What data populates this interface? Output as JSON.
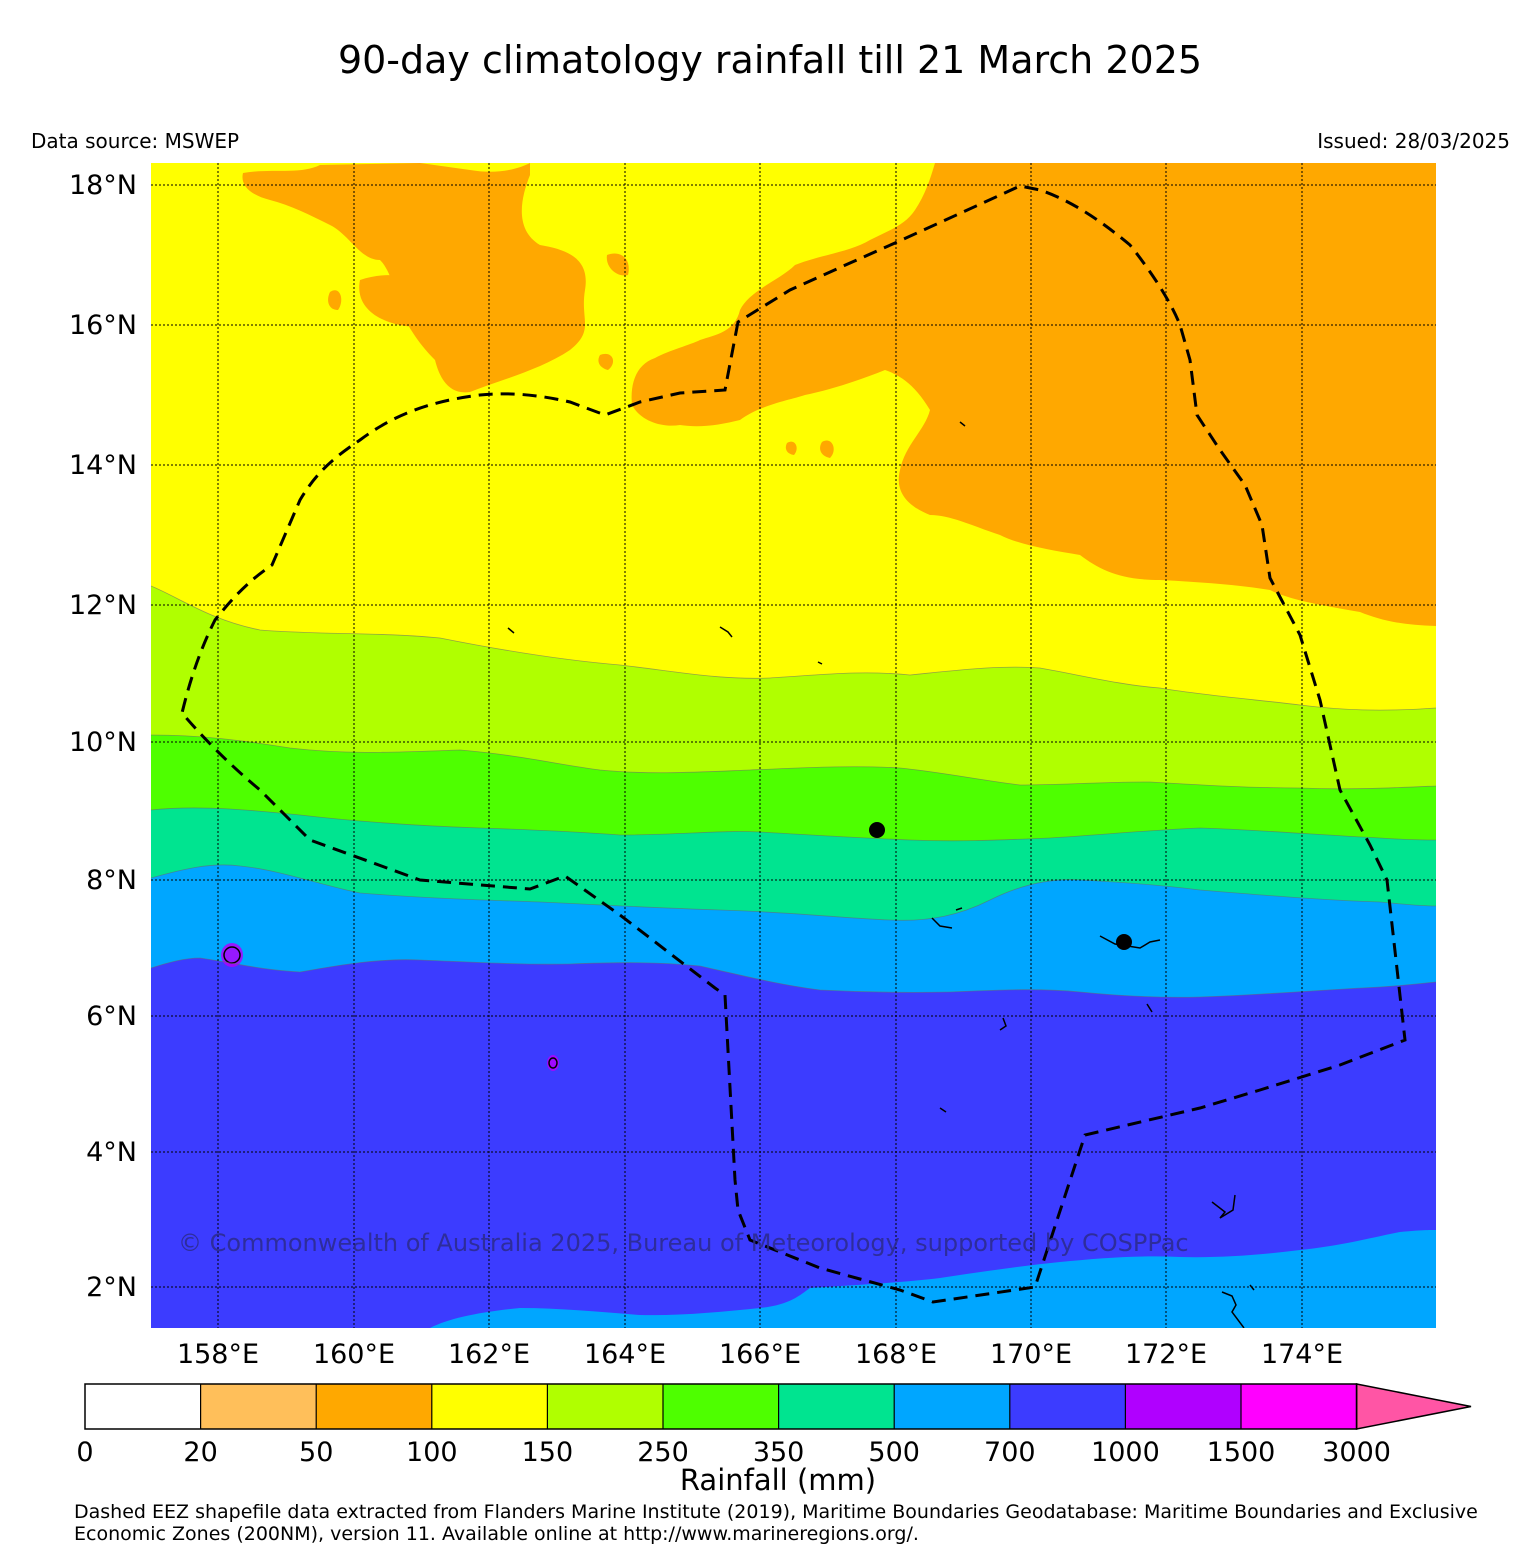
{
  "title": "90-day climatology rainfall till 21 March 2025",
  "data_source": "Data source: MSWEP",
  "issued": "Issued: 28/03/2025",
  "copyright": "© Commonwealth of Australia 2025, Bureau of Meteorology, supported by COSPPac",
  "footnote": "Dashed EEZ shapefile data extracted from Flanders Marine Institute (2019), Maritime Boundaries Geodatabase: Maritime Boundaries and Exclusive Economic Zones (200NM), version 11. Available online at http://www.marineregions.org/.",
  "map": {
    "lat_labels": [
      "18°N",
      "16°N",
      "14°N",
      "12°N",
      "10°N",
      "8°N",
      "6°N",
      "4°N",
      "2°N"
    ],
    "lon_labels": [
      "158°E",
      "160°E",
      "162°E",
      "164°E",
      "166°E",
      "168°E",
      "170°E",
      "172°E",
      "174°E"
    ],
    "lat_range": [
      1.4,
      18.3
    ],
    "lon_range": [
      157.0,
      175.9
    ],
    "eez_line": "dashed black",
    "grid": "dotted"
  },
  "colorbar": {
    "title": "Rainfall (mm)",
    "ticks": [
      "0",
      "20",
      "50",
      "100",
      "150",
      "250",
      "350",
      "500",
      "700",
      "1000",
      "1500",
      "3000"
    ],
    "colors": [
      "#ffffff",
      "#ffbf5a",
      "#ffa800",
      "#ffff00",
      "#b0ff00",
      "#4eff00",
      "#00e490",
      "#00a6ff",
      "#3c3cff",
      "#b000ff",
      "#ff00ff",
      "#ff55a5"
    ],
    "extend": "max"
  },
  "zones": {
    "orange_100": "#ffa800",
    "yellow_150": "#ffff00",
    "lime_250": "#b0ff00",
    "green_350": "#4eff00",
    "teal_500": "#00e490",
    "sky_700": "#00a6ff",
    "blue_1000": "#3c3cff",
    "purple_1500": "#b000ff"
  },
  "island_markers": 2
}
